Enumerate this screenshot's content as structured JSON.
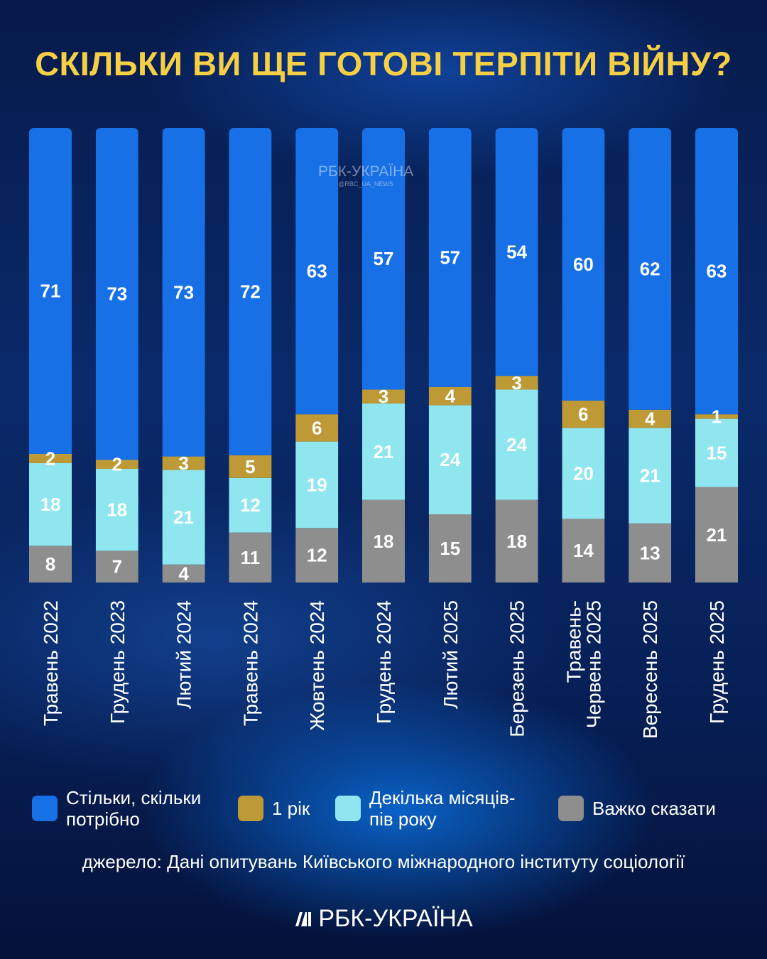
{
  "title": "СКІЛЬКИ ВИ ЩЕ ГОТОВІ ТЕРПІТИ ВІЙНУ?",
  "watermark": {
    "name": "РБК-УКРАЇНА",
    "handle": "@RBC_UA_NEWS"
  },
  "source": "джерело: Дані опитувань Київського міжнародного інституту соціології",
  "logo": "РБК-УКРАЇНА",
  "chart_data": {
    "type": "bar",
    "stacked": true,
    "normalized": true,
    "unit": "%",
    "title": "СКІЛЬКИ ВИ ЩЕ ГОТОВІ ТЕРПІТИ ВІЙНУ?",
    "categories": [
      [
        "Травень 2022"
      ],
      [
        "Грудень 2023"
      ],
      [
        "Лютий 2024"
      ],
      [
        "Травень 2024"
      ],
      [
        "Жовтень 2024"
      ],
      [
        "Грудень 2024"
      ],
      [
        "Лютий 2025"
      ],
      [
        "Березень 2025"
      ],
      [
        "Травень-",
        "Червень 2025"
      ],
      [
        "Вересень 2025"
      ],
      [
        "Грудень 2025"
      ]
    ],
    "series": [
      {
        "name": "Важко сказати",
        "color": "#8e8e8e",
        "values": [
          8,
          7,
          4,
          11,
          12,
          18,
          15,
          18,
          14,
          13,
          21
        ]
      },
      {
        "name": "Декілька місяців-пів року",
        "color": "#8fe6ef",
        "values": [
          18,
          18,
          21,
          12,
          19,
          21,
          24,
          24,
          20,
          21,
          15
        ]
      },
      {
        "name": "1 рік",
        "color": "#bd9a36",
        "values": [
          2,
          2,
          3,
          5,
          6,
          3,
          4,
          3,
          6,
          4,
          1
        ]
      },
      {
        "name": "Стільки, скільки потрібно",
        "color": "#1770e6",
        "values": [
          71,
          73,
          73,
          72,
          63,
          57,
          57,
          54,
          60,
          62,
          63
        ]
      }
    ],
    "legend": {
      "placement": "bottom",
      "items": [
        {
          "lines": [
            "Стільки, скільки",
            "потрібно"
          ],
          "color": "#1770e6"
        },
        {
          "lines": [
            "1 рік"
          ],
          "color": "#bd9a36"
        },
        {
          "lines": [
            "Декілька місяців-",
            "пів року"
          ],
          "color": "#8fe6ef"
        },
        {
          "lines": [
            "Важко сказати"
          ],
          "color": "#8e8e8e"
        }
      ]
    }
  }
}
